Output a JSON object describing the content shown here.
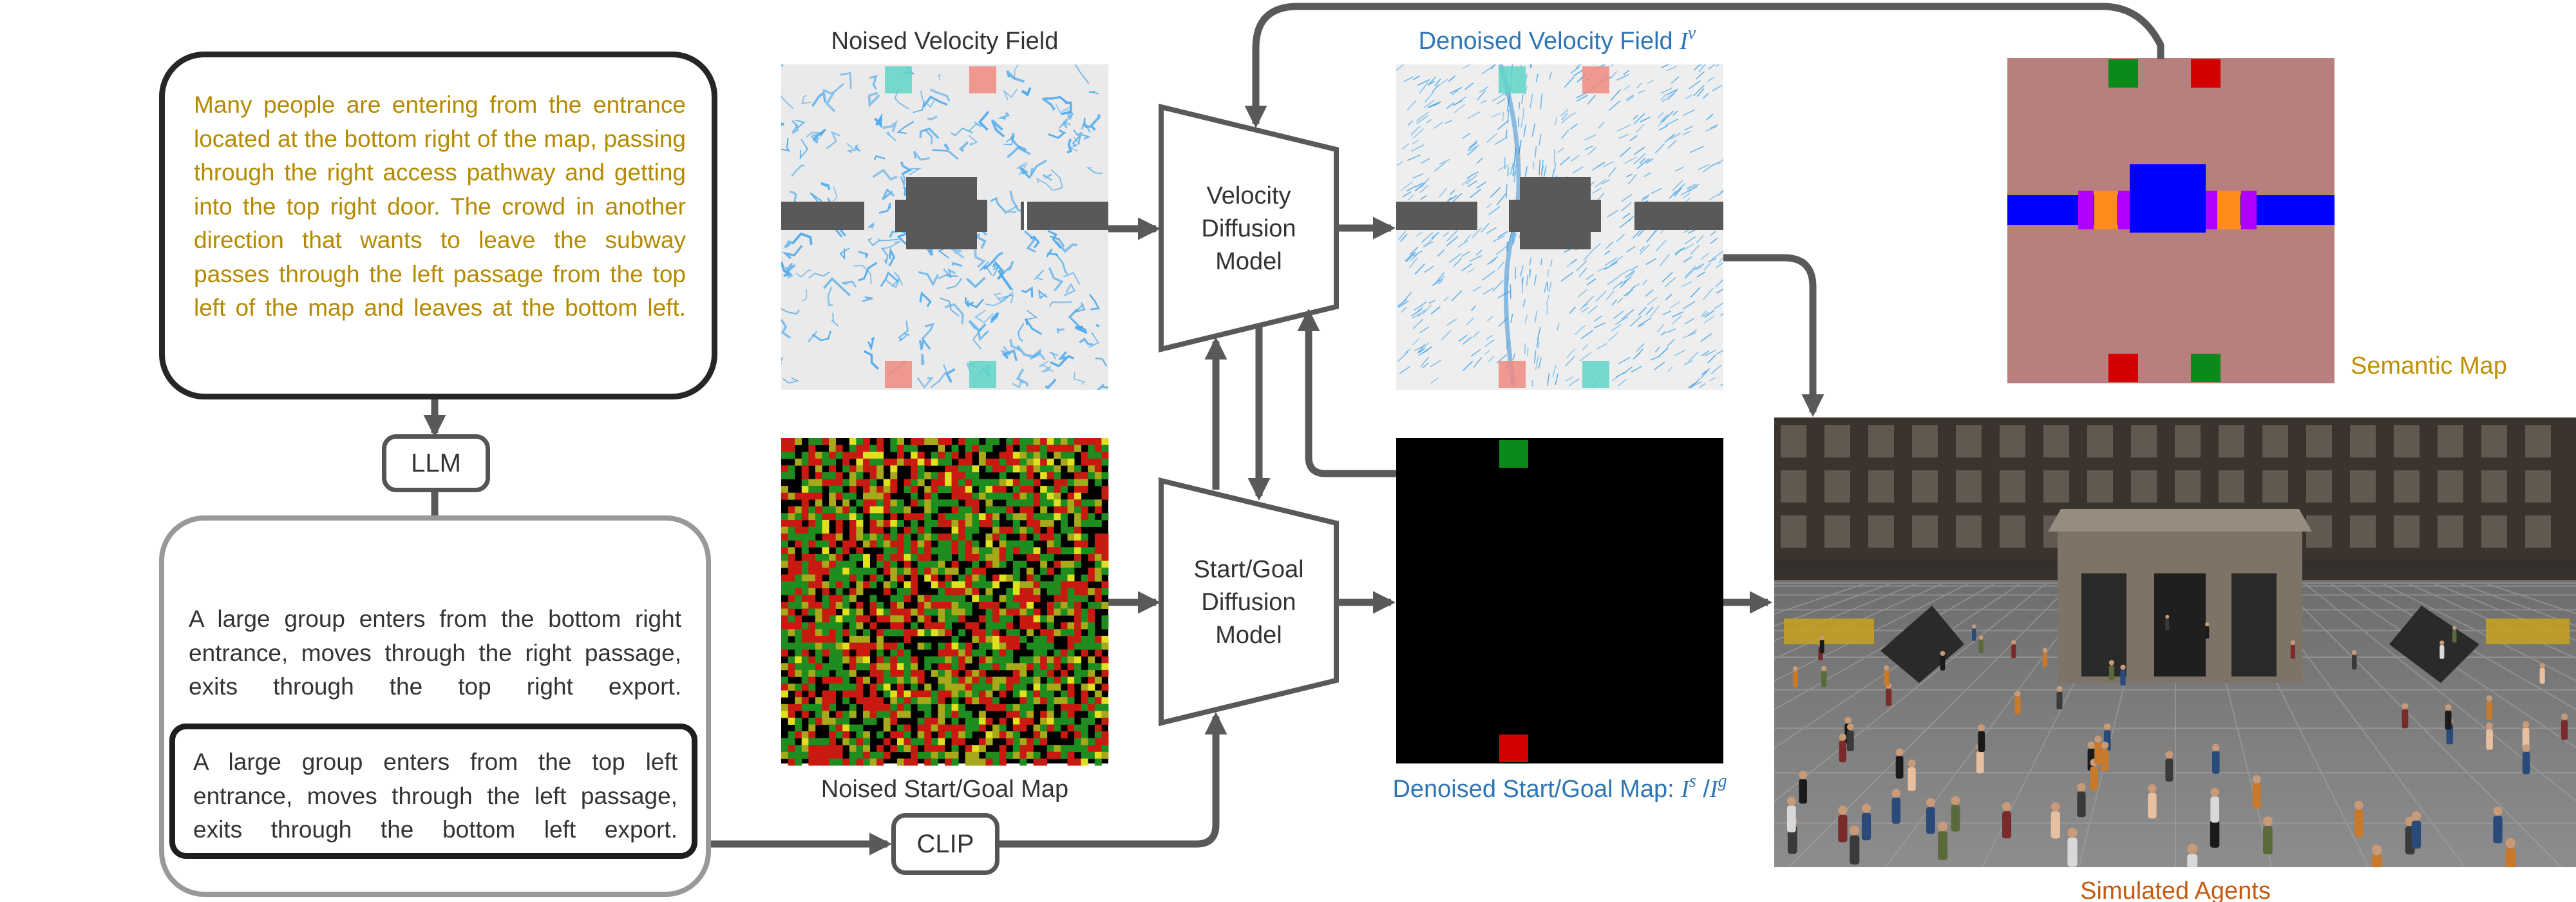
{
  "prompt_text": "Many people are entering from the entrance located at the bottom right of the map, passing through the right access pathway and getting into the top right door. The crowd in another direction that wants to leave the subway passes through the left passage from the top left of the map and leaves at the bottom left.",
  "llm_label": "LLM",
  "clip_label": "CLIP",
  "sub_prompts": [
    "A large group enters from the bottom right entrance, moves through the right passage, exits through the top right export.",
    "A large group enters from the top left entrance, moves through the left passage, exits through the bottom left export."
  ],
  "labels": {
    "noised_velocity": "Noised Velocity Field",
    "denoised_velocity": "Denoised Velocity Field",
    "denoised_velocity_symbol": "I",
    "denoised_velocity_sup": "v",
    "noised_startgoal": "Noised Start/Goal Map",
    "denoised_startgoal": "Denoised Start/Goal Map: ",
    "startgoal_symbol_s": "I",
    "startgoal_sup_s": "s",
    "startgoal_slash": " /",
    "startgoal_symbol_g": "I",
    "startgoal_sup_g": "g",
    "semantic_map": "Semantic Map",
    "simulated_agents": "Simulated Agents"
  },
  "models": {
    "velocity": [
      "Velocity",
      "Diffusion",
      "Model"
    ],
    "startgoal": [
      "Start/Goal",
      "Diffusion",
      "Model"
    ]
  },
  "colors": {
    "prompt_text": "#b58a00",
    "blue_label": "#2e75b6",
    "orange_label": "#c55a11",
    "gold_label": "#bf9000",
    "arrow": "#595959",
    "semantic_bg": "#b87f7f",
    "semantic_blue": "#0000ff",
    "semantic_orange": "#ff8c1a",
    "semantic_purple": "#b000ff",
    "start_red": "#d40000",
    "goal_green": "#0a8a1a",
    "velocity_blue": "#4aa8ec"
  }
}
